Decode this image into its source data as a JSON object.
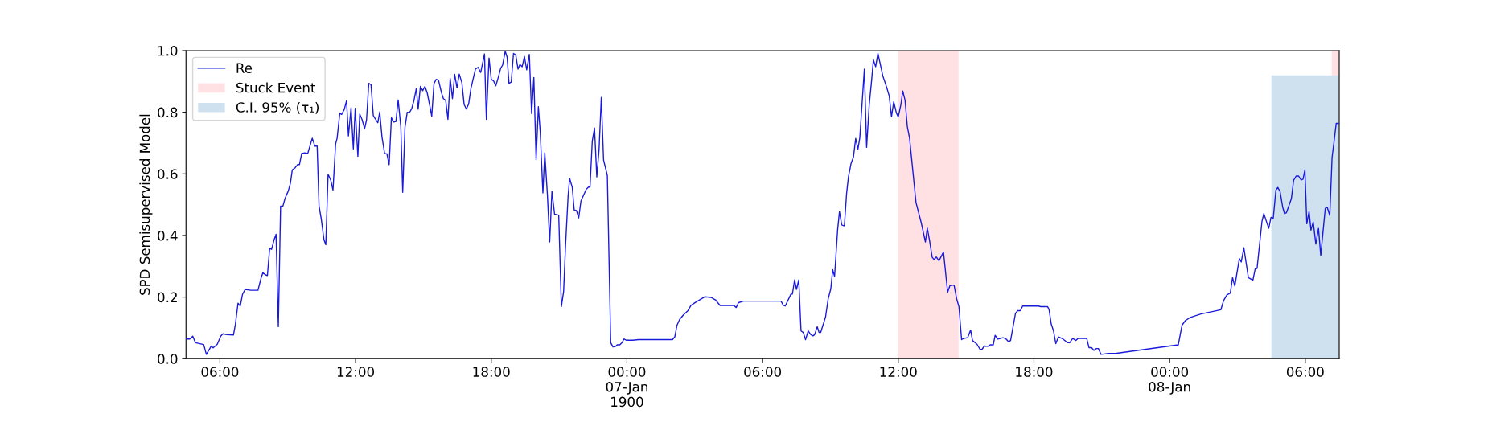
{
  "chart_data": {
    "type": "line",
    "ylabel": "SPD Semisupervised Model",
    "xlim": [
      "1900-01-06T04:30",
      "1900-01-08T07:30"
    ],
    "xticks": [
      {
        "value": "1900-01-06T06:00",
        "label": "06:00"
      },
      {
        "value": "1900-01-06T12:00",
        "label": "12:00"
      },
      {
        "value": "1900-01-06T18:00",
        "label": "18:00"
      },
      {
        "value": "1900-01-07T00:00",
        "label": "00:00\n07-Jan\n1900"
      },
      {
        "value": "1900-01-07T06:00",
        "label": "06:00"
      },
      {
        "value": "1900-01-07T12:00",
        "label": "12:00"
      },
      {
        "value": "1900-01-07T18:00",
        "label": "18:00"
      },
      {
        "value": "1900-01-08T00:00",
        "label": "00:00\n08-Jan"
      },
      {
        "value": "1900-01-08T06:00",
        "label": "06:00"
      }
    ],
    "ylim": [
      0,
      1
    ],
    "yticks": [
      {
        "value": 0,
        "label": "0.0"
      },
      0.2,
      0.4,
      0.6,
      0.8,
      {
        "value": 1,
        "label": "1.0"
      }
    ],
    "grid": false,
    "legend": "top left",
    "series": [
      {
        "name": "Re",
        "color": "#1a1adb",
        "x": [
          "1900-01-06T04:30",
          "1900-01-06T04:40",
          "1900-01-06T04:48",
          "1900-01-06T04:55",
          "1900-01-06T05:17",
          "1900-01-06T05:24",
          "1900-01-06T05:37",
          "1900-01-06T05:42",
          "1900-01-06T05:53",
          "1900-01-06T06:02",
          "1900-01-06T06:08",
          "1900-01-06T06:18",
          "1900-01-06T06:36",
          "1900-01-06T06:41",
          "1900-01-06T06:48",
          "1900-01-06T06:54",
          "1900-01-06T07:00",
          "1900-01-06T07:07",
          "1900-01-06T07:22",
          "1900-01-06T07:41",
          "1900-01-06T07:49",
          "1900-01-06T07:54",
          "1900-01-06T08:01",
          "1900-01-06T08:06",
          "1900-01-06T08:12",
          "1900-01-06T08:17",
          "1900-01-06T08:24",
          "1900-01-06T08:29",
          "1900-01-06T08:35",
          "1900-01-06T08:41",
          "1900-01-06T08:47",
          "1900-01-06T08:53",
          "1900-01-06T09:01",
          "1900-01-06T09:07",
          "1900-01-06T09:12",
          "1900-01-06T09:19",
          "1900-01-06T09:26",
          "1900-01-06T09:31",
          "1900-01-06T09:37",
          "1900-01-06T09:45",
          "1900-01-06T09:53",
          "1900-01-06T10:05",
          "1900-01-06T10:12",
          "1900-01-06T10:18",
          "1900-01-06T10:23",
          "1900-01-06T10:29",
          "1900-01-06T10:36",
          "1900-01-06T10:41",
          "1900-01-06T10:47",
          "1900-01-06T10:54",
          "1900-01-06T11:00",
          "1900-01-06T11:07",
          "1900-01-06T11:11",
          "1900-01-06T11:18",
          "1900-01-06T11:23",
          "1900-01-06T11:30",
          "1900-01-06T11:36",
          "1900-01-06T11:41",
          "1900-01-06T11:48",
          "1900-01-06T11:54",
          "1900-01-06T11:59",
          "1900-01-06T12:06",
          "1900-01-06T12:11",
          "1900-01-06T12:17",
          "1900-01-06T12:24",
          "1900-01-06T12:29",
          "1900-01-06T12:35",
          "1900-01-06T12:41",
          "1900-01-06T12:47",
          "1900-01-06T12:52",
          "1900-01-06T12:59",
          "1900-01-06T13:04",
          "1900-01-06T13:10",
          "1900-01-06T13:17",
          "1900-01-06T13:23",
          "1900-01-06T13:29",
          "1900-01-06T13:35",
          "1900-01-06T13:41",
          "1900-01-06T13:47",
          "1900-01-06T13:53",
          "1900-01-06T14:00",
          "1900-01-06T14:05",
          "1900-01-06T14:11",
          "1900-01-06T14:17",
          "1900-01-06T14:23",
          "1900-01-06T14:29",
          "1900-01-06T14:35",
          "1900-01-06T14:41",
          "1900-01-06T14:46",
          "1900-01-06T14:52",
          "1900-01-06T14:58",
          "1900-01-06T15:04",
          "1900-01-06T15:10",
          "1900-01-06T15:17",
          "1900-01-06T15:22",
          "1900-01-06T15:28",
          "1900-01-06T15:34",
          "1900-01-06T15:40",
          "1900-01-06T15:48",
          "1900-01-06T15:53",
          "1900-01-06T15:59",
          "1900-01-06T16:05",
          "1900-01-06T16:11",
          "1900-01-06T16:17",
          "1900-01-06T16:23",
          "1900-01-06T16:29",
          "1900-01-06T16:35",
          "1900-01-06T16:42",
          "1900-01-06T16:48",
          "1900-01-06T16:54",
          "1900-01-06T17:00",
          "1900-01-06T17:06",
          "1900-01-06T17:18",
          "1900-01-06T17:25",
          "1900-01-06T17:32",
          "1900-01-06T17:42",
          "1900-01-06T17:47",
          "1900-01-06T17:54",
          "1900-01-06T18:00",
          "1900-01-06T18:06",
          "1900-01-06T18:12",
          "1900-01-06T18:19",
          "1900-01-06T18:25",
          "1900-01-06T18:30",
          "1900-01-06T18:37",
          "1900-01-06T18:42",
          "1900-01-06T18:47",
          "1900-01-06T18:53",
          "1900-01-06T18:59",
          "1900-01-06T19:05",
          "1900-01-06T19:11",
          "1900-01-06T19:16",
          "1900-01-06T19:22",
          "1900-01-06T19:28",
          "1900-01-06T19:34",
          "1900-01-06T19:41",
          "1900-01-06T19:47",
          "1900-01-06T19:53",
          "1900-01-06T19:59",
          "1900-01-06T20:05",
          "1900-01-06T20:10",
          "1900-01-06T20:17",
          "1900-01-06T20:22",
          "1900-01-06T20:29",
          "1900-01-06T20:35",
          "1900-01-06T20:41",
          "1900-01-06T20:48",
          "1900-01-06T20:59",
          "1900-01-06T21:06",
          "1900-01-06T21:12",
          "1900-01-06T21:17",
          "1900-01-06T21:24",
          "1900-01-06T21:28",
          "1900-01-06T21:35",
          "1900-01-06T21:40",
          "1900-01-06T21:46",
          "1900-01-06T21:52",
          "1900-01-06T21:58",
          "1900-01-06T22:05",
          "1900-01-06T22:12",
          "1900-01-06T22:18",
          "1900-01-06T22:22",
          "1900-01-06T22:28",
          "1900-01-06T22:34",
          "1900-01-06T22:40",
          "1900-01-06T22:46",
          "1900-01-06T22:52",
          "1900-01-06T22:58",
          "1900-01-06T23:08",
          "1900-01-06T23:17",
          "1900-01-06T23:23",
          "1900-01-06T23:30",
          "1900-01-06T23:34",
          "1900-01-06T23:41",
          "1900-01-06T23:47",
          "1900-01-06T23:52",
          "1900-01-06T23:58",
          "1900-01-07T00:03",
          "1900-01-07T00:15",
          "1900-01-07T00:31",
          "1900-01-07T02:01",
          "1900-01-07T02:07",
          "1900-01-07T02:13",
          "1900-01-07T02:20",
          "1900-01-07T02:30",
          "1900-01-07T02:42",
          "1900-01-07T02:50",
          "1900-01-07T03:02",
          "1900-01-07T03:27",
          "1900-01-07T03:43",
          "1900-01-07T03:55",
          "1900-01-07T04:07",
          "1900-01-07T04:44",
          "1900-01-07T04:50",
          "1900-01-07T04:56",
          "1900-01-07T05:09",
          "1900-01-07T05:29",
          "1900-01-07T06:49",
          "1900-01-07T06:55",
          "1900-01-07T07:00",
          "1900-01-07T07:15",
          "1900-01-07T07:19",
          "1900-01-07T07:25",
          "1900-01-07T07:30",
          "1900-01-07T07:36",
          "1900-01-07T07:42",
          "1900-01-07T07:48",
          "1900-01-07T07:54",
          "1900-01-07T08:01",
          "1900-01-07T08:08",
          "1900-01-07T08:14",
          "1900-01-07T08:18",
          "1900-01-07T08:25",
          "1900-01-07T08:30",
          "1900-01-07T08:34",
          "1900-01-07T08:47",
          "1900-01-07T08:54",
          "1900-01-07T09:01",
          "1900-01-07T09:06",
          "1900-01-07T09:11",
          "1900-01-07T09:19",
          "1900-01-07T09:24",
          "1900-01-07T09:30",
          "1900-01-07T09:37",
          "1900-01-07T09:43",
          "1900-01-07T09:48",
          "1900-01-07T09:55",
          "1900-01-07T10:01",
          "1900-01-07T10:07",
          "1900-01-07T10:13",
          "1900-01-07T10:18",
          "1900-01-07T10:30",
          "1900-01-07T10:36",
          "1900-01-07T10:43",
          "1900-01-07T10:49",
          "1900-01-07T10:54",
          "1900-01-07T11:00",
          "1900-01-07T11:06",
          "1900-01-07T11:19",
          "1900-01-07T11:29",
          "1900-01-07T11:36",
          "1900-01-07T11:42",
          "1900-01-07T11:48",
          "1900-01-07T11:55",
          "1900-01-07T12:00",
          "1900-01-07T12:07",
          "1900-01-07T12:12",
          "1900-01-07T12:18",
          "1900-01-07T12:24",
          "1900-01-07T12:30",
          "1900-01-07T12:47",
          "1900-01-07T13:01",
          "1900-01-07T13:12",
          "1900-01-07T13:17",
          "1900-01-07T13:23",
          "1900-01-07T13:30",
          "1900-01-07T13:35",
          "1900-01-07T13:41",
          "1900-01-07T13:48",
          "1900-01-07T14:00",
          "1900-01-07T14:11",
          "1900-01-07T14:17",
          "1900-01-07T14:28",
          "1900-01-07T14:35",
          "1900-01-07T14:41",
          "1900-01-07T14:48",
          "1900-01-07T14:54",
          "1900-01-07T15:04",
          "1900-01-07T15:12",
          "1900-01-07T15:17",
          "1900-01-07T15:29",
          "1900-01-07T15:37",
          "1900-01-07T15:42",
          "1900-01-07T15:48",
          "1900-01-07T15:58",
          "1900-01-07T16:04",
          "1900-01-07T16:12",
          "1900-01-07T16:17",
          "1900-01-07T16:24",
          "1900-01-07T16:38",
          "1900-01-07T16:46",
          "1900-01-07T16:53",
          "1900-01-07T16:58",
          "1900-01-07T17:11",
          "1900-01-07T17:17",
          "1900-01-07T17:24",
          "1900-01-07T17:30",
          "1900-01-07T18:12",
          "1900-01-07T18:18",
          "1900-01-07T18:36",
          "1900-01-07T18:40",
          "1900-01-07T18:46",
          "1900-01-07T18:52",
          "1900-01-07T18:58",
          "1900-01-07T19:05",
          "1900-01-07T19:17",
          "1900-01-07T19:29",
          "1900-01-07T19:35",
          "1900-01-07T19:43",
          "1900-01-07T19:51",
          "1900-01-07T19:57",
          "1900-01-07T20:20",
          "1900-01-07T20:26",
          "1900-01-07T20:33",
          "1900-01-07T20:39",
          "1900-01-07T20:46",
          "1900-01-07T20:51",
          "1900-01-07T20:58",
          "1900-01-07T21:18",
          "1900-01-07T21:36",
          "1900-01-08T00:23",
          "1900-01-08T00:33",
          "1900-01-08T00:42",
          "1900-01-08T00:55",
          "1900-01-08T01:23",
          "1900-01-08T02:16",
          "1900-01-08T02:23",
          "1900-01-08T02:32",
          "1900-01-08T02:41",
          "1900-01-08T02:47",
          "1900-01-08T02:53",
          "1900-01-08T03:05",
          "1900-01-08T03:10",
          "1900-01-08T03:17",
          "1900-01-08T03:29",
          "1900-01-08T03:41",
          "1900-01-08T03:47",
          "1900-01-08T03:52",
          "1900-01-08T04:05",
          "1900-01-08T04:10",
          "1900-01-08T04:23",
          "1900-01-08T04:29",
          "1900-01-08T04:35",
          "1900-01-08T04:42",
          "1900-01-08T04:47",
          "1900-01-08T04:53",
          "1900-01-08T05:00",
          "1900-01-08T05:05",
          "1900-01-08T05:10",
          "1900-01-08T05:23",
          "1900-01-08T05:29",
          "1900-01-08T05:36",
          "1900-01-08T05:42",
          "1900-01-08T05:49",
          "1900-01-08T05:54",
          "1900-01-08T05:59",
          "1900-01-08T06:04",
          "1900-01-08T06:10",
          "1900-01-08T06:15",
          "1900-01-08T06:21",
          "1900-01-08T06:28",
          "1900-01-08T06:35",
          "1900-01-08T06:41",
          "1900-01-08T06:53",
          "1900-01-08T06:58",
          "1900-01-08T07:05",
          "1900-01-08T07:11",
          "1900-01-08T07:17",
          "1900-01-08T07:22",
          "1900-01-08T07:29"
        ],
        "values": [
          0.064,
          0.064,
          0.073,
          0.052,
          0.046,
          0.014,
          0.041,
          0.035,
          0.047,
          0.073,
          0.081,
          0.078,
          0.077,
          0.111,
          0.18,
          0.171,
          0.209,
          0.225,
          0.222,
          0.222,
          0.261,
          0.279,
          0.272,
          0.27,
          0.358,
          0.355,
          0.387,
          0.404,
          0.104,
          0.495,
          0.495,
          0.521,
          0.543,
          0.569,
          0.613,
          0.619,
          0.63,
          0.63,
          0.666,
          0.668,
          0.666,
          0.716,
          0.69,
          0.69,
          0.496,
          0.453,
          0.386,
          0.37,
          0.599,
          0.58,
          0.547,
          0.697,
          0.716,
          0.796,
          0.793,
          0.809,
          0.838,
          0.723,
          0.815,
          0.681,
          0.813,
          0.657,
          0.794,
          0.777,
          0.747,
          0.775,
          0.894,
          0.889,
          0.789,
          0.779,
          0.766,
          0.801,
          0.72,
          0.666,
          0.665,
          0.63,
          0.782,
          0.768,
          0.77,
          0.84,
          0.752,
          0.54,
          0.751,
          0.8,
          0.799,
          0.812,
          0.839,
          0.877,
          0.81,
          0.884,
          0.87,
          0.884,
          0.863,
          0.82,
          0.787,
          0.893,
          0.907,
          0.904,
          0.863,
          0.844,
          0.839,
          0.777,
          0.91,
          0.844,
          0.923,
          0.879,
          0.924,
          0.896,
          0.825,
          0.81,
          0.827,
          0.877,
          0.94,
          0.946,
          0.929,
          0.989,
          0.777,
          0.976,
          0.907,
          0.902,
          0.886,
          0.915,
          0.943,
          0.953,
          0.998,
          0.979,
          0.894,
          0.898,
          0.991,
          0.986,
          0.94,
          0.955,
          0.948,
          0.981,
          0.938,
          0.988,
          0.796,
          0.913,
          0.646,
          0.818,
          0.735,
          0.538,
          0.668,
          0.531,
          0.379,
          0.543,
          0.469,
          0.466,
          0.169,
          0.218,
          0.365,
          0.531,
          0.585,
          0.556,
          0.483,
          0.481,
          0.457,
          0.512,
          0.531,
          0.55,
          0.557,
          0.557,
          0.706,
          0.749,
          0.59,
          0.678,
          0.848,
          0.645,
          0.595,
          0.052,
          0.038,
          0.04,
          0.045,
          0.045,
          0.052,
          0.064,
          0.06,
          0.06,
          0.06,
          0.062,
          0.062,
          0.071,
          0.109,
          0.128,
          0.142,
          0.156,
          0.173,
          0.183,
          0.201,
          0.199,
          0.191,
          0.173,
          0.173,
          0.166,
          0.182,
          0.187,
          0.187,
          0.187,
          0.173,
          0.171,
          0.209,
          0.21,
          0.256,
          0.225,
          0.256,
          0.09,
          0.085,
          0.062,
          0.09,
          0.078,
          0.074,
          0.078,
          0.104,
          0.085,
          0.085,
          0.135,
          0.194,
          0.227,
          0.289,
          0.267,
          0.417,
          0.477,
          0.434,
          0.431,
          0.538,
          0.592,
          0.635,
          0.654,
          0.715,
          0.68,
          0.718,
          0.94,
          0.686,
          0.825,
          0.9,
          0.97,
          0.948,
          0.991,
          0.918,
          0.882,
          0.853,
          0.785,
          0.834,
          0.798,
          0.785,
          0.825,
          0.869,
          0.839,
          0.754,
          0.716,
          0.507,
          0.441,
          0.379,
          0.424,
          0.384,
          0.329,
          0.322,
          0.33,
          0.318,
          0.346,
          0.216,
          0.237,
          0.239,
          0.194,
          0.169,
          0.062,
          0.066,
          0.068,
          0.093,
          0.059,
          0.047,
          0.03,
          0.03,
          0.041,
          0.04,
          0.045,
          0.045,
          0.076,
          0.064,
          0.068,
          0.064,
          0.055,
          0.059,
          0.147,
          0.156,
          0.156,
          0.171,
          0.171,
          0.169,
          0.169,
          0.161,
          0.112,
          0.09,
          0.049,
          0.071,
          0.064,
          0.052,
          0.052,
          0.066,
          0.059,
          0.066,
          0.066,
          0.036,
          0.036,
          0.027,
          0.033,
          0.033,
          0.014,
          0.017,
          0.017,
          0.045,
          0.109,
          0.124,
          0.134,
          0.145,
          0.159,
          0.188,
          0.207,
          0.213,
          0.263,
          0.236,
          0.325,
          0.314,
          0.36,
          0.263,
          0.255,
          0.291,
          0.293,
          0.445,
          0.471,
          0.423,
          0.459,
          0.456,
          0.547,
          0.556,
          0.543,
          0.492,
          0.471,
          0.474,
          0.519,
          0.579,
          0.593,
          0.593,
          0.58,
          0.583,
          0.613,
          0.438,
          0.478,
          0.417,
          0.444,
          0.372,
          0.423,
          0.335,
          0.488,
          0.492,
          0.465,
          0.653,
          0.712,
          0.764,
          0.764
        ]
      },
      {
        "name": "Stuck Event",
        "type": "area",
        "color": "#ffe1e4",
        "x": [
          "1900-01-07T12:00",
          "1900-01-07T14:40"
        ],
        "values": [
          1,
          1
        ]
      },
      {
        "type": "area",
        "color": "#ffe1e4",
        "x": [
          "1900-01-08T07:10",
          "1900-01-08T07:30"
        ],
        "values": [
          1,
          1
        ]
      },
      {
        "name": "C.I. 95% (τ₁)",
        "type": "area",
        "color": "#cfe1ef",
        "x": [
          "1900-01-08T04:30",
          "1900-01-08T07:30"
        ],
        "values": [
          0.92,
          0.92
        ]
      }
    ]
  }
}
